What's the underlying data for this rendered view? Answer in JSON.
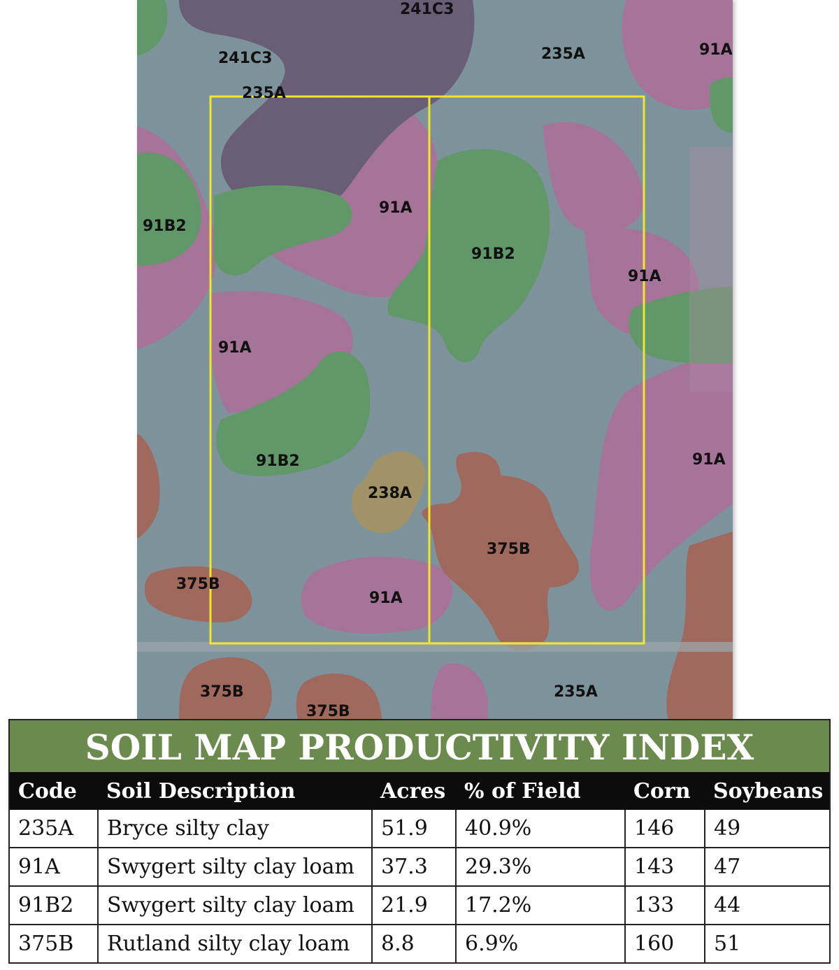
{
  "map": {
    "labels": [
      {
        "code": "241C3"
      },
      {
        "code": "235A"
      },
      {
        "code": "91A"
      },
      {
        "code": "241C3"
      },
      {
        "code": "235A"
      },
      {
        "code": "91B2"
      },
      {
        "code": "91A"
      },
      {
        "code": "91B2"
      },
      {
        "code": "91A"
      },
      {
        "code": "91A"
      },
      {
        "code": "91B2"
      },
      {
        "code": "238A"
      },
      {
        "code": "91A"
      },
      {
        "code": "375B"
      },
      {
        "code": "375B"
      },
      {
        "code": "91A"
      },
      {
        "code": "375B"
      },
      {
        "code": "235A"
      },
      {
        "code": "375B"
      }
    ],
    "colors": {
      "235A": "#7a9ba8",
      "91A": "#b86aa4",
      "91B2": "#4fa35a",
      "241C3": "#5a4a6e",
      "375B": "#b05a48",
      "238A": "#b39a58",
      "field_boundary": "#f2e52a"
    }
  },
  "table": {
    "title": "SOIL MAP PRODUCTIVITY INDEX",
    "headers": [
      "Code",
      "Soil Description",
      "Acres",
      "% of Field",
      "Corn",
      "Soybeans"
    ],
    "rows": [
      [
        "235A",
        "Bryce silty clay",
        "51.9",
        "40.9%",
        "146",
        "49"
      ],
      [
        "91A",
        "Swygert silty clay loam",
        "37.3",
        "29.3%",
        "143",
        "47"
      ],
      [
        "91B2",
        "Swygert silty clay loam",
        "21.9",
        "17.2%",
        "133",
        "44"
      ],
      [
        "375B",
        "Rutland silty clay loam",
        "8.8",
        "6.9%",
        "160",
        "51"
      ]
    ]
  }
}
